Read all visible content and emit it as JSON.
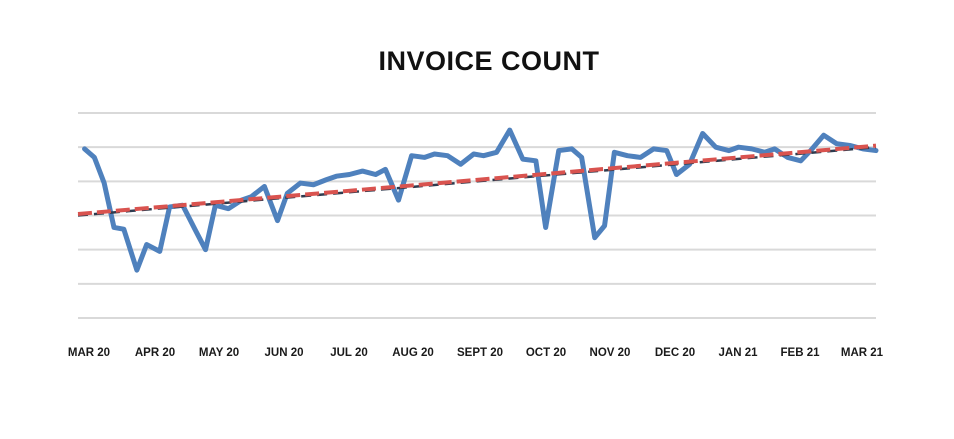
{
  "chart_data": {
    "type": "line",
    "title": "INVOICE COUNT",
    "xlabel": "",
    "ylabel": "",
    "categories": [
      "MAR 20",
      "APR 20",
      "MAY 20",
      "JUN 20",
      "JUL 20",
      "AUG 20",
      "SEPT 20",
      "OCT 20",
      "NOV 20",
      "DEC 20",
      "JAN 21",
      "FEB 21",
      "MAR 21"
    ],
    "ylim": [
      0,
      6
    ],
    "grid": true,
    "y_tick_labels_shown": false,
    "x": [
      0,
      0.15,
      0.3,
      0.45,
      0.6,
      0.8,
      0.95,
      1.15,
      1.3,
      1.5,
      1.7,
      1.85,
      2.0,
      2.2,
      2.4,
      2.55,
      2.75,
      2.95,
      3.1,
      3.3,
      3.5,
      3.7,
      3.85,
      4.05,
      4.25,
      4.45,
      4.6,
      4.8,
      5.0,
      5.2,
      5.35,
      5.55,
      5.75,
      5.95,
      6.1,
      6.3,
      6.5,
      6.7,
      6.9,
      7.05,
      7.25,
      7.45,
      7.6,
      7.8,
      7.95,
      8.1,
      8.3,
      8.5,
      8.7,
      8.9,
      9.05,
      9.25,
      9.45,
      9.65,
      9.85,
      10.0,
      10.2,
      10.4,
      10.55,
      10.75,
      10.95,
      11.1,
      11.3,
      11.5,
      11.7,
      11.9,
      12.1
    ],
    "series": [
      {
        "values": [
          4.95,
          4.7,
          3.95,
          2.65,
          2.6,
          1.4,
          2.15,
          1.95,
          3.25,
          3.3,
          2.55,
          2.0,
          3.3,
          3.2,
          3.45,
          3.55,
          3.85,
          2.85,
          3.65,
          3.95,
          3.9,
          4.05,
          4.15,
          4.2,
          4.3,
          4.2,
          4.35,
          3.45,
          4.75,
          4.7,
          4.8,
          4.75,
          4.5,
          4.8,
          4.75,
          4.85,
          5.5,
          4.65,
          4.6,
          2.65,
          4.9,
          4.95,
          4.7,
          2.35,
          2.7,
          4.85,
          4.75,
          4.7,
          4.95,
          4.9,
          4.2,
          4.5,
          5.4,
          5.0,
          4.9,
          5.0,
          4.95,
          4.85,
          4.95,
          4.7,
          4.6,
          4.9,
          5.35,
          5.1,
          5.05,
          4.95,
          4.9
        ],
        "color": "#4f81bd"
      }
    ],
    "trendline": {
      "type": "linear",
      "from": [
        -0.1,
        3.0
      ],
      "to": [
        12.1,
        5.0
      ],
      "color": "#d9534f",
      "secondary_color": "#2e3b4e",
      "style": "dashed"
    }
  }
}
